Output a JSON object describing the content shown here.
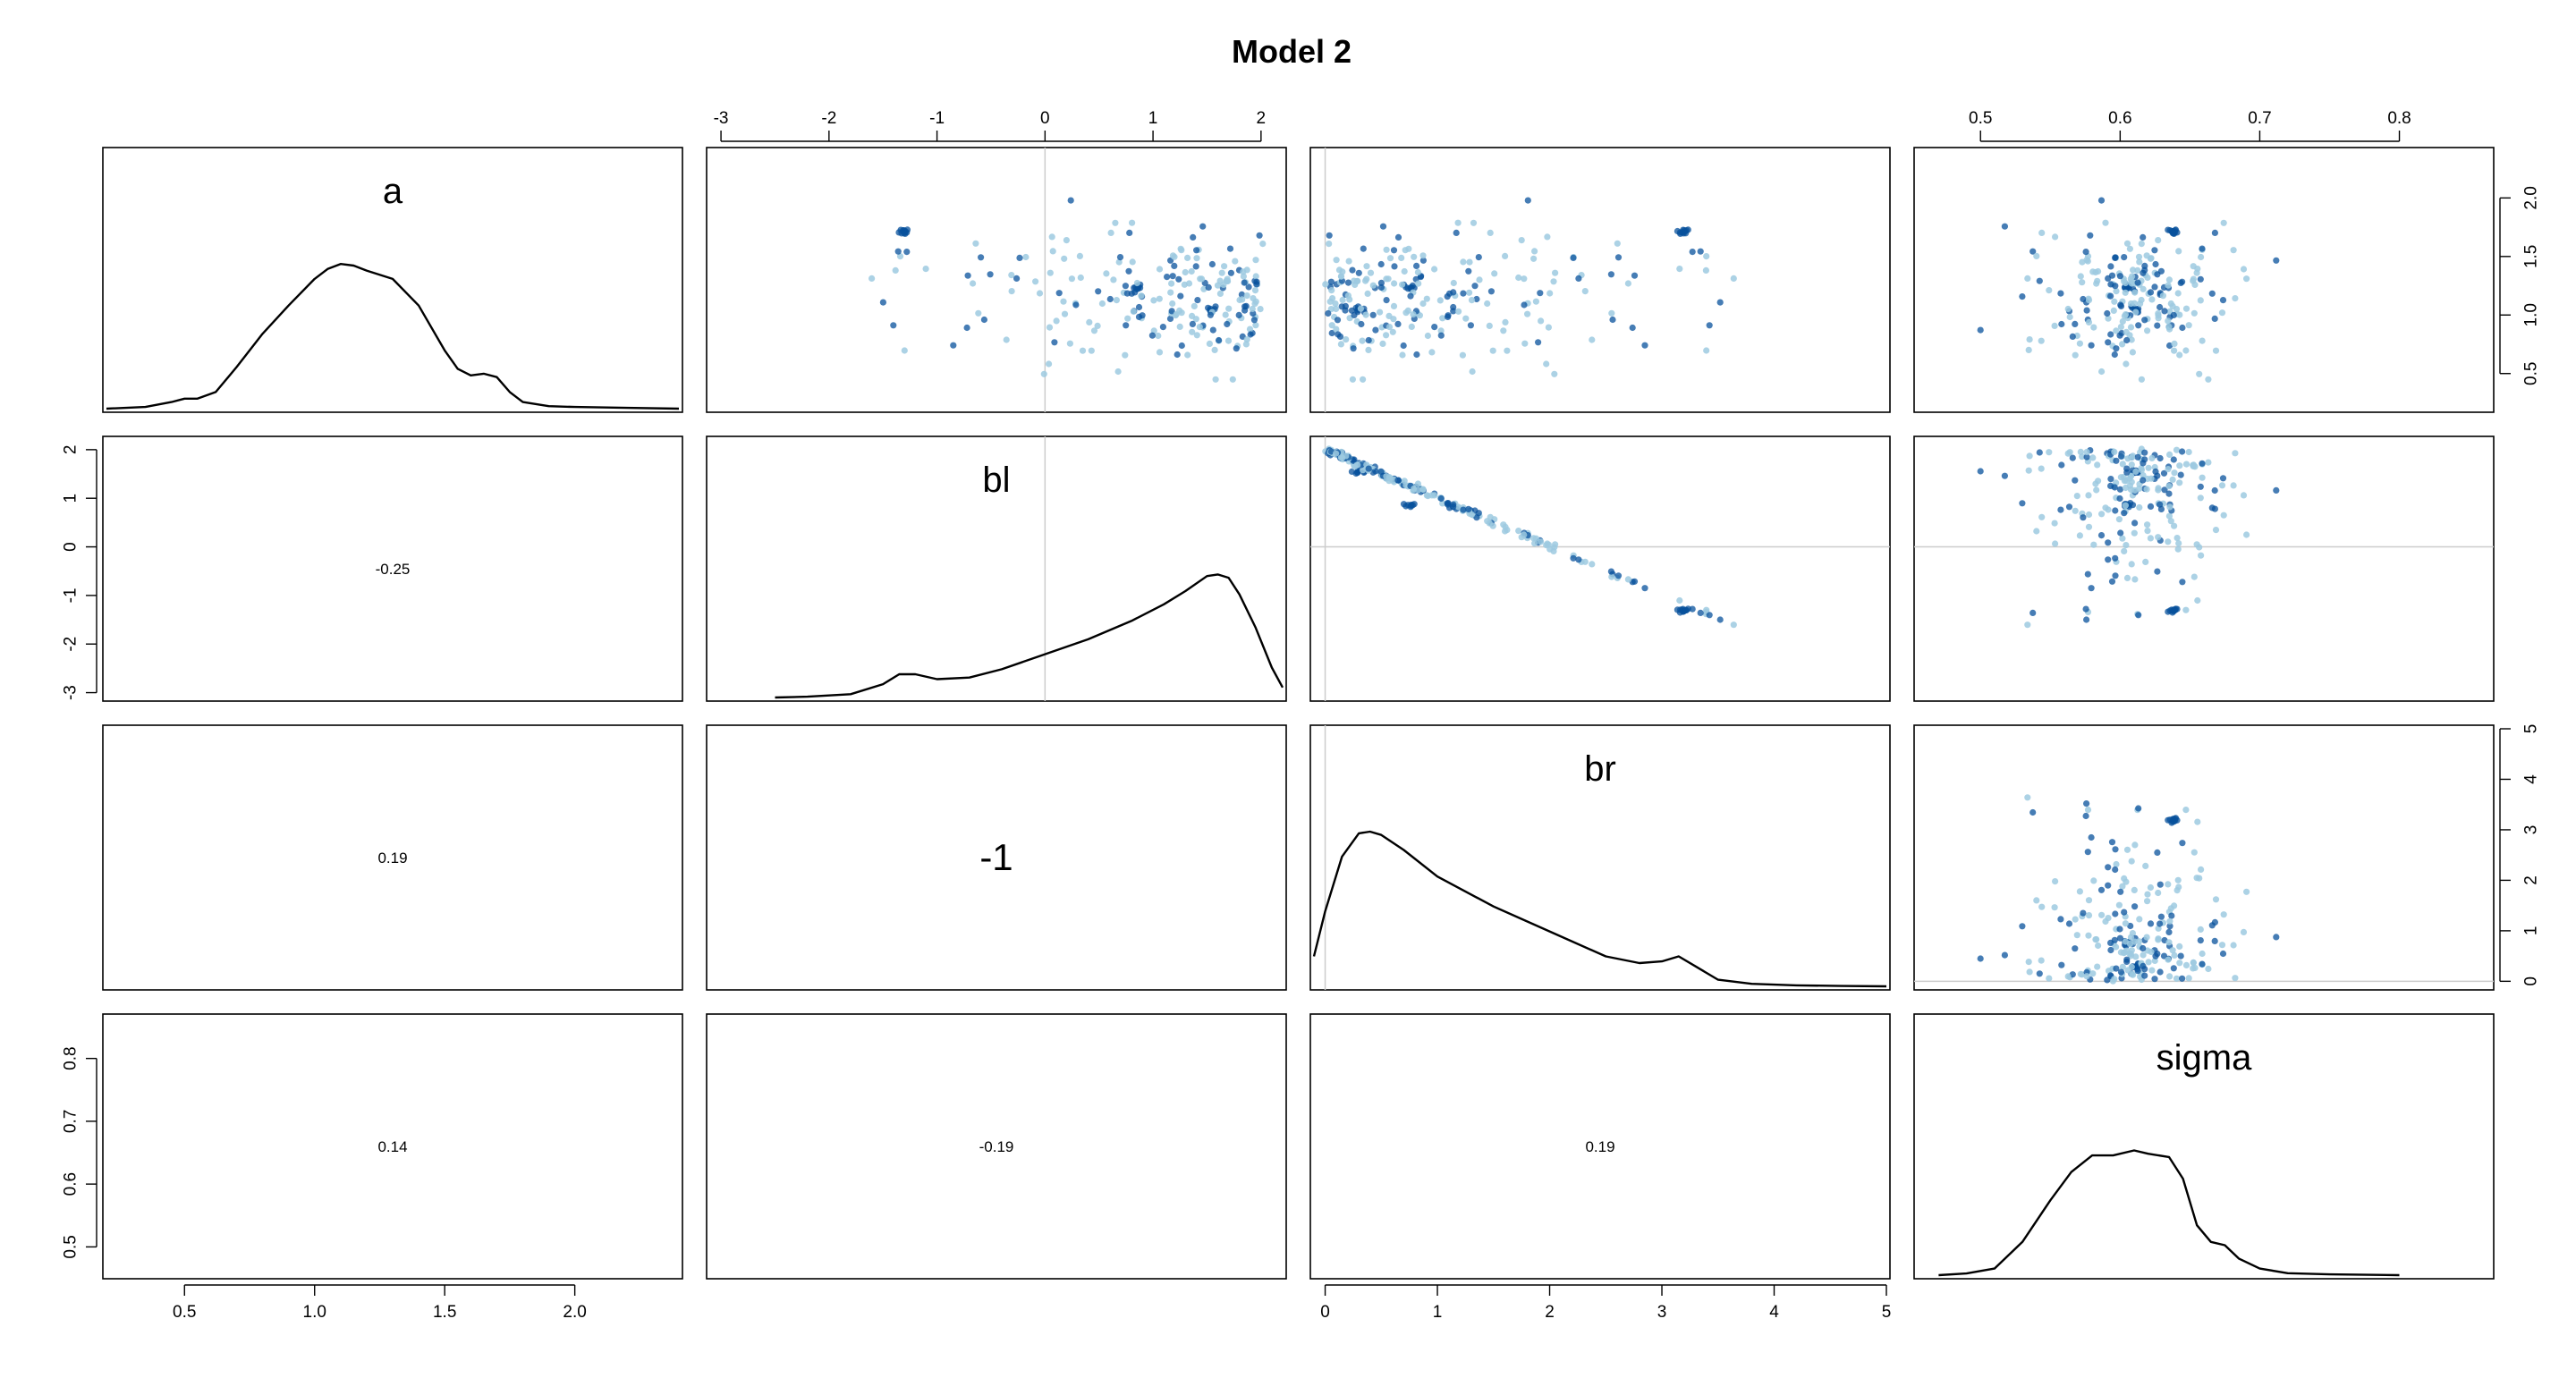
{
  "chart_data": {
    "type": "scatter",
    "title": "Model 2",
    "variables": [
      {
        "name": "a",
        "range": [
          0.2,
          2.4
        ]
      },
      {
        "name": "bl",
        "range": [
          -3.1,
          2.2
        ]
      },
      {
        "name": "br",
        "range": [
          -0.1,
          5.0
        ]
      },
      {
        "name": "sigma",
        "range": [
          0.455,
          0.865
        ]
      }
    ],
    "axes": {
      "a": {
        "ticks": [
          0.5,
          1.0,
          1.5,
          2.0
        ],
        "labels": [
          "0.5",
          "1.0",
          "1.5",
          "2.0"
        ],
        "side": "bottom"
      },
      "bl": {
        "ticks": [
          -3,
          -2,
          -1,
          0,
          1,
          2
        ],
        "labels": [
          "-3",
          "-2",
          "-1",
          "0",
          "1",
          "2"
        ],
        "side": "top-and-left"
      },
      "br": {
        "ticks": [
          0,
          1,
          2,
          3,
          4,
          5
        ],
        "labels": [
          "0",
          "1",
          "2",
          "3",
          "4",
          "5"
        ],
        "side": "bottom-and-right"
      },
      "sigma": {
        "ticks": [
          0.5,
          0.6,
          0.7,
          0.8
        ],
        "labels": [
          "0.5",
          "0.6",
          "0.7",
          "0.8"
        ],
        "side": "top-and-left"
      },
      "a_right": {
        "ticks": [
          0.5,
          1.0,
          1.5,
          2.0
        ],
        "labels": [
          "0.5",
          "1.0",
          "1.5",
          "2.0"
        ]
      }
    },
    "correlations": [
      {
        "row": "bl",
        "col": "a",
        "value": "-0.25"
      },
      {
        "row": "br",
        "col": "a",
        "value": "0.19"
      },
      {
        "row": "br",
        "col": "bl",
        "value": "-1"
      },
      {
        "row": "sigma",
        "col": "a",
        "value": "0.14"
      },
      {
        "row": "sigma",
        "col": "bl",
        "value": "-0.19"
      },
      {
        "row": "sigma",
        "col": "br",
        "value": "0.19"
      }
    ],
    "densities": {
      "a": {
        "x": [
          0.2,
          0.35,
          0.45,
          0.5,
          0.55,
          0.62,
          0.7,
          0.8,
          0.9,
          1.0,
          1.05,
          1.1,
          1.15,
          1.2,
          1.3,
          1.4,
          1.5,
          1.55,
          1.6,
          1.65,
          1.7,
          1.75,
          1.8,
          1.9,
          2.0,
          2.2,
          2.4
        ],
        "y": [
          0.0,
          0.01,
          0.04,
          0.06,
          0.06,
          0.1,
          0.25,
          0.45,
          0.62,
          0.78,
          0.84,
          0.87,
          0.86,
          0.83,
          0.78,
          0.62,
          0.35,
          0.24,
          0.2,
          0.21,
          0.19,
          0.1,
          0.04,
          0.015,
          0.01,
          0.005,
          0.0
        ]
      },
      "bl": {
        "x": [
          -2.5,
          -2.2,
          -1.8,
          -1.5,
          -1.35,
          -1.2,
          -1.0,
          -0.7,
          -0.4,
          0.0,
          0.4,
          0.8,
          1.1,
          1.3,
          1.5,
          1.6,
          1.7,
          1.8,
          1.95,
          2.1,
          2.2
        ],
        "y": [
          0.0,
          0.005,
          0.02,
          0.08,
          0.14,
          0.14,
          0.11,
          0.12,
          0.17,
          0.26,
          0.35,
          0.46,
          0.56,
          0.64,
          0.73,
          0.74,
          0.72,
          0.62,
          0.42,
          0.18,
          0.06
        ]
      },
      "br": {
        "x": [
          -0.1,
          0.0,
          0.15,
          0.3,
          0.4,
          0.5,
          0.7,
          1.0,
          1.5,
          2.0,
          2.5,
          2.8,
          3.0,
          3.15,
          3.3,
          3.5,
          3.8,
          4.2,
          4.6,
          5.0
        ],
        "y": [
          0.18,
          0.45,
          0.78,
          0.92,
          0.93,
          0.91,
          0.82,
          0.66,
          0.48,
          0.33,
          0.18,
          0.14,
          0.15,
          0.18,
          0.12,
          0.04,
          0.015,
          0.006,
          0.002,
          0.0
        ]
      },
      "sigma": {
        "x": [
          0.47,
          0.49,
          0.51,
          0.53,
          0.55,
          0.565,
          0.58,
          0.595,
          0.61,
          0.62,
          0.635,
          0.645,
          0.655,
          0.665,
          0.675,
          0.685,
          0.7,
          0.72,
          0.75,
          0.8
        ],
        "y": [
          0.0,
          0.01,
          0.04,
          0.2,
          0.45,
          0.62,
          0.72,
          0.72,
          0.75,
          0.73,
          0.71,
          0.58,
          0.3,
          0.2,
          0.18,
          0.1,
          0.04,
          0.012,
          0.005,
          0.0
        ]
      }
    },
    "scatter": {
      "n_points": 240,
      "color_light": "#9ecae1",
      "color_dark": "#08519c",
      "clusters": [
        {
          "a": 1.71,
          "bl": -1.3,
          "br": 3.2,
          "sigma": 0.638,
          "n": 12
        },
        {
          "a": 1.25,
          "bl": 0.85,
          "br": 0.75,
          "sigma": 0.605,
          "n": 8
        },
        {
          "a": 1.05,
          "bl": 1.55,
          "br": 0.3,
          "sigma": 0.61,
          "n": 8
        }
      ]
    },
    "reference_lines": {
      "bl": 0,
      "br": 0
    },
    "grid": false,
    "legend": "none"
  }
}
